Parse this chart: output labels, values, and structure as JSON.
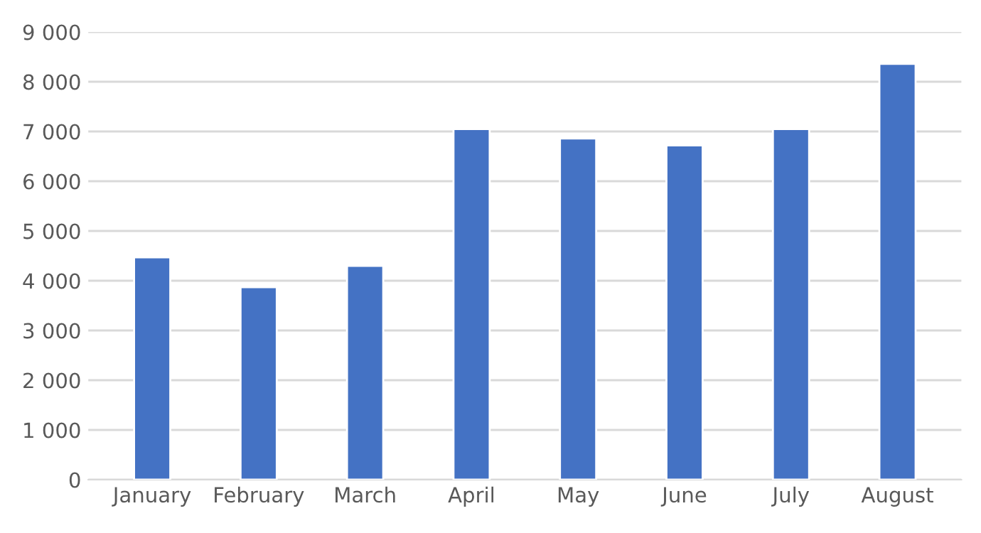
{
  "chart_data": {
    "type": "bar",
    "categories": [
      "January",
      "February",
      "March",
      "April",
      "May",
      "June",
      "July",
      "August"
    ],
    "values": [
      4470,
      3870,
      4300,
      7050,
      6860,
      6720,
      7050,
      8360
    ],
    "color": "#4472c4",
    "ylim": [
      0,
      9000
    ],
    "yticks": [
      0,
      {
        "value": 1000,
        "label": "1 000"
      },
      {
        "value": 2000,
        "label": "2 000"
      },
      {
        "value": 3000,
        "label": "3 000"
      },
      {
        "value": 4000,
        "label": "4 000"
      },
      {
        "value": 5000,
        "label": "5 000"
      },
      {
        "value": 6000,
        "label": "6 000"
      },
      {
        "value": 7000,
        "label": "7 000"
      },
      {
        "value": 8000,
        "label": "8 000"
      },
      {
        "value": 9000,
        "label": "9 000"
      }
    ],
    "grid": "y"
  }
}
